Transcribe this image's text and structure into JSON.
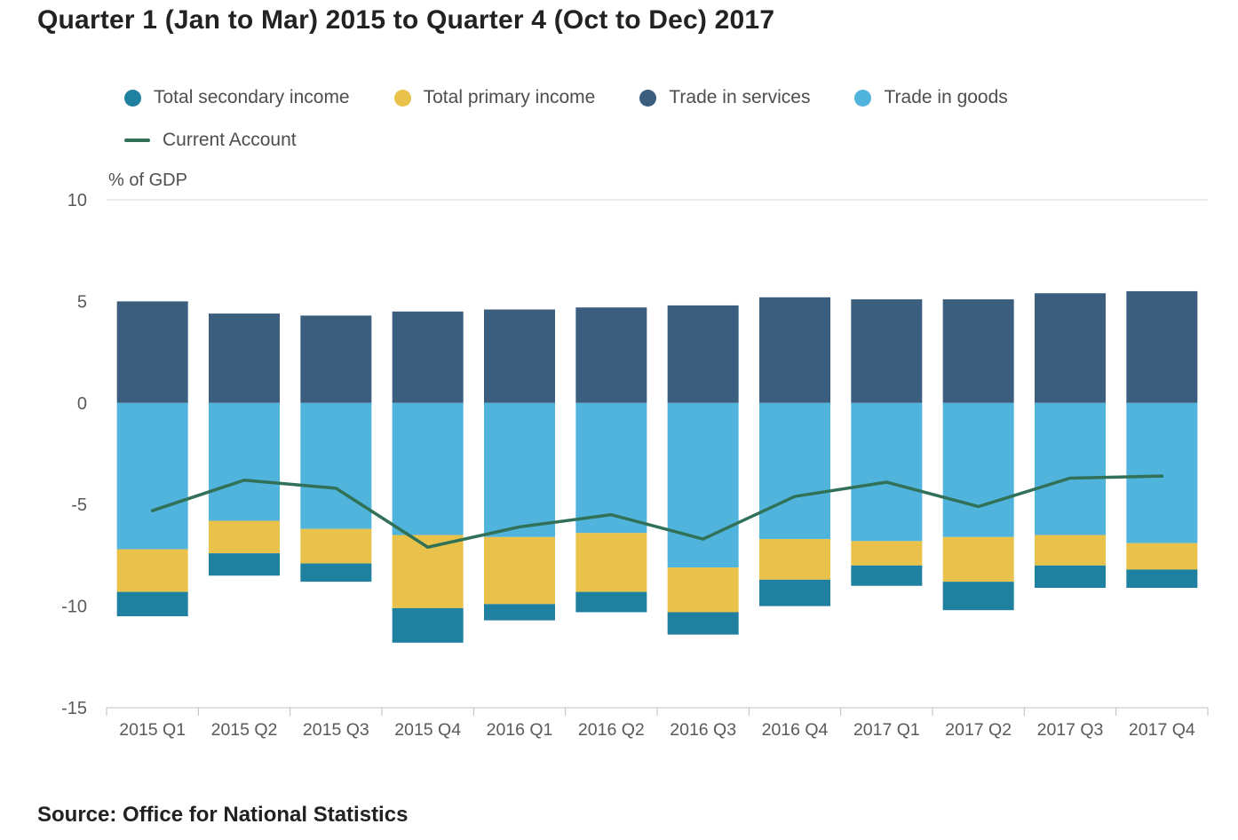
{
  "title": "Quarter 1 (Jan to Mar) 2015 to Quarter 4 (Oct to Dec) 2017",
  "source": "Source: Office for National Statistics",
  "colors": {
    "secondary_income": "#1f80a0",
    "primary_income": "#e8c24a",
    "trade_in_services": "#3b5e7e",
    "trade_in_goods": "#51b4dc",
    "current_account_line": "#317158"
  },
  "legend": {
    "rows": [
      [
        {
          "label": "Total secondary income",
          "swatch": "dot",
          "color": "#1f80a0"
        },
        {
          "label": "Total primary income",
          "swatch": "dot",
          "color": "#e8c24a"
        },
        {
          "label": "Trade in services",
          "swatch": "dot",
          "color": "#3b5e7e"
        },
        {
          "label": "Trade in goods",
          "swatch": "dot",
          "color": "#51b4dc"
        }
      ],
      [
        {
          "label": "Current Account",
          "swatch": "line",
          "color": "#317158"
        }
      ]
    ]
  },
  "chart_data": {
    "type": "bar",
    "stacked": true,
    "title": "Quarter 1 (Jan to Mar) 2015 to Quarter 4 (Oct to Dec) 2017",
    "xlabel": "",
    "ylabel": "% of GDP",
    "ylim": [
      -15,
      10
    ],
    "yticks": [
      10,
      5,
      0,
      -5,
      -10,
      -15
    ],
    "grid": "top-line-only",
    "legend_position": "top",
    "categories": [
      "2015 Q1",
      "2015 Q2",
      "2015 Q3",
      "2015 Q4",
      "2016 Q1",
      "2016 Q2",
      "2016 Q3",
      "2016 Q4",
      "2017 Q1",
      "2017 Q2",
      "2017 Q3",
      "2017 Q4"
    ],
    "series": [
      {
        "name": "Trade in services",
        "color": "#3b5e7e",
        "values": [
          5.0,
          4.4,
          4.3,
          4.5,
          4.6,
          4.7,
          4.8,
          5.2,
          5.1,
          5.1,
          5.4,
          5.5
        ]
      },
      {
        "name": "Trade in goods",
        "color": "#51b4dc",
        "values": [
          -7.2,
          -5.8,
          -6.2,
          -6.5,
          -6.6,
          -6.4,
          -8.1,
          -6.7,
          -6.8,
          -6.6,
          -6.5,
          -6.9
        ]
      },
      {
        "name": "Total primary income",
        "color": "#e8c24a",
        "values": [
          -2.1,
          -1.6,
          -1.7,
          -3.6,
          -3.3,
          -2.9,
          -2.2,
          -2.0,
          -1.2,
          -2.2,
          -1.5,
          -1.3
        ]
      },
      {
        "name": "Total secondary income",
        "color": "#1f80a0",
        "values": [
          -1.2,
          -1.1,
          -0.9,
          -1.7,
          -0.8,
          -1.0,
          -1.1,
          -1.3,
          -1.0,
          -1.4,
          -1.1,
          -0.9
        ]
      }
    ],
    "line": {
      "name": "Current Account",
      "color": "#317158",
      "values": [
        -5.3,
        -3.8,
        -4.2,
        -7.1,
        -6.1,
        -5.5,
        -6.7,
        -4.6,
        -3.9,
        -5.1,
        -3.7,
        -3.6
      ]
    }
  }
}
